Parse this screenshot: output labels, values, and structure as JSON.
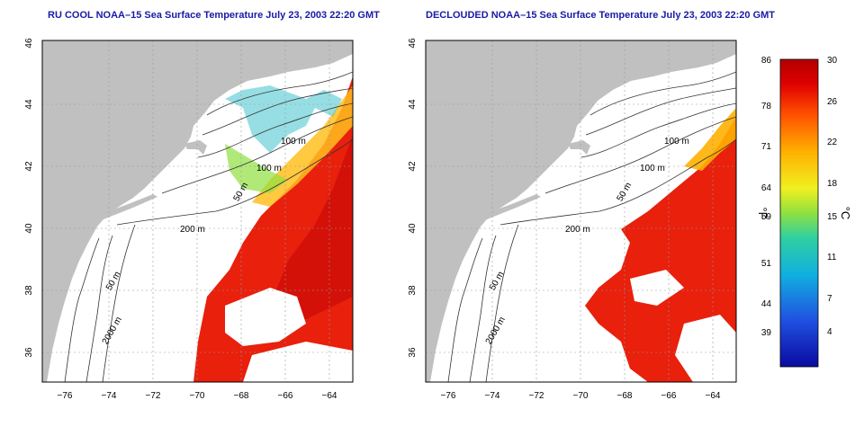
{
  "panels": [
    {
      "title": "RU COOL NOAA–15 Sea Surface Temperature July 23, 2003 22:20 GMT",
      "contour_labels": [
        "100 m",
        "100 m",
        "50 m",
        "200 m",
        "50 m",
        "2000 m"
      ]
    },
    {
      "title": "DECLOUDED NOAA–15 Sea Surface Temperature July 23, 2003 22:20 GMT",
      "contour_labels": [
        "100 m",
        "100 m",
        "50 m",
        "200 m",
        "50 m",
        "2000 m"
      ]
    }
  ],
  "axes": {
    "x_ticks": [
      "−76",
      "−74",
      "−72",
      "−70",
      "−68",
      "−66",
      "−64"
    ],
    "y_ticks": [
      "46",
      "44",
      "42",
      "40",
      "38",
      "36"
    ]
  },
  "colorbar": {
    "fahrenheit_ticks": [
      "86",
      "78",
      "71",
      "64",
      "59",
      "51",
      "44",
      "39"
    ],
    "celsius_ticks": [
      "30",
      "26",
      "22",
      "18",
      "15",
      "11",
      "7",
      "4"
    ],
    "fahrenheit_unit": "°F",
    "celsius_unit": "°C"
  },
  "colors": {
    "land": "#c0c0c0",
    "title": "#1a1aa6",
    "scale_hot": "#b00000",
    "scale_cold": "#0a0aa0"
  }
}
